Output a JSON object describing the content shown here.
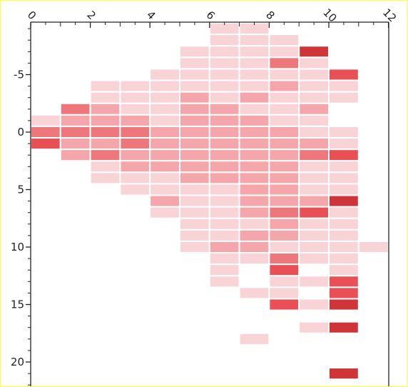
{
  "chart_data": {
    "type": "heatmap",
    "title": "",
    "xlabel": "",
    "ylabel": "",
    "x_axis_position": "top",
    "xlim": [
      0,
      12
    ],
    "ylim": [
      -10.5,
      22
    ],
    "x_ticks": [
      0,
      2,
      4,
      6,
      8,
      10,
      12
    ],
    "x_tick_labels": [
      "0",
      "2",
      "4",
      "6",
      "8",
      "10",
      "12"
    ],
    "y_ticks": [
      -5,
      0,
      5,
      10,
      15,
      20
    ],
    "y_tick_labels": [
      "-5",
      "0",
      "5",
      "10",
      "15",
      "20"
    ],
    "grid": false,
    "legend": "none",
    "colors": {
      "level1": "#f8d4d6",
      "level2": "#f4a6aa",
      "level3": "#ee777c",
      "level4": "#e85056",
      "level5": "#cf3538"
    },
    "cell_width": 1,
    "cell_height": 1,
    "cells": [
      {
        "x": 6,
        "y": -9,
        "v": 1
      },
      {
        "x": 7,
        "y": -9,
        "v": 1
      },
      {
        "x": 6,
        "y": -8,
        "v": 1
      },
      {
        "x": 7,
        "y": -8,
        "v": 1
      },
      {
        "x": 8,
        "y": -8,
        "v": 1
      },
      {
        "x": 5,
        "y": -7,
        "v": 1
      },
      {
        "x": 6,
        "y": -7,
        "v": 1
      },
      {
        "x": 7,
        "y": -7,
        "v": 1
      },
      {
        "x": 8,
        "y": -7,
        "v": 1
      },
      {
        "x": 9,
        "y": -7,
        "v": 5
      },
      {
        "x": 5,
        "y": -6,
        "v": 1
      },
      {
        "x": 6,
        "y": -6,
        "v": 1
      },
      {
        "x": 7,
        "y": -6,
        "v": 1
      },
      {
        "x": 8,
        "y": -6,
        "v": 3
      },
      {
        "x": 9,
        "y": -6,
        "v": 1
      },
      {
        "x": 4,
        "y": -5,
        "v": 1
      },
      {
        "x": 5,
        "y": -5,
        "v": 1
      },
      {
        "x": 6,
        "y": -5,
        "v": 1
      },
      {
        "x": 7,
        "y": -5,
        "v": 1
      },
      {
        "x": 8,
        "y": -5,
        "v": 1
      },
      {
        "x": 9,
        "y": -5,
        "v": 1
      },
      {
        "x": 10,
        "y": -5,
        "v": 4
      },
      {
        "x": 2,
        "y": -4,
        "v": 1
      },
      {
        "x": 3,
        "y": -4,
        "v": 1
      },
      {
        "x": 4,
        "y": -4,
        "v": 1
      },
      {
        "x": 5,
        "y": -4,
        "v": 1
      },
      {
        "x": 6,
        "y": -4,
        "v": 1
      },
      {
        "x": 7,
        "y": -4,
        "v": 1
      },
      {
        "x": 8,
        "y": -4,
        "v": 2
      },
      {
        "x": 9,
        "y": -4,
        "v": 1
      },
      {
        "x": 10,
        "y": -4,
        "v": 1
      },
      {
        "x": 2,
        "y": -3,
        "v": 1
      },
      {
        "x": 3,
        "y": -3,
        "v": 1
      },
      {
        "x": 4,
        "y": -3,
        "v": 1
      },
      {
        "x": 5,
        "y": -3,
        "v": 2
      },
      {
        "x": 6,
        "y": -3,
        "v": 1
      },
      {
        "x": 7,
        "y": -3,
        "v": 2
      },
      {
        "x": 8,
        "y": -3,
        "v": 1
      },
      {
        "x": 9,
        "y": -3,
        "v": 1
      },
      {
        "x": 10,
        "y": -3,
        "v": 1
      },
      {
        "x": 1,
        "y": -2,
        "v": 3
      },
      {
        "x": 2,
        "y": -2,
        "v": 2
      },
      {
        "x": 3,
        "y": -2,
        "v": 1
      },
      {
        "x": 4,
        "y": -2,
        "v": 1
      },
      {
        "x": 5,
        "y": -2,
        "v": 2
      },
      {
        "x": 6,
        "y": -2,
        "v": 2
      },
      {
        "x": 7,
        "y": -2,
        "v": 1
      },
      {
        "x": 8,
        "y": -2,
        "v": 1
      },
      {
        "x": 9,
        "y": -2,
        "v": 2
      },
      {
        "x": 0,
        "y": -1,
        "v": 1
      },
      {
        "x": 1,
        "y": -1,
        "v": 2
      },
      {
        "x": 2,
        "y": -1,
        "v": 2
      },
      {
        "x": 3,
        "y": -1,
        "v": 2
      },
      {
        "x": 4,
        "y": -1,
        "v": 1
      },
      {
        "x": 5,
        "y": -1,
        "v": 2
      },
      {
        "x": 6,
        "y": -1,
        "v": 2
      },
      {
        "x": 7,
        "y": -1,
        "v": 2
      },
      {
        "x": 8,
        "y": -1,
        "v": 1
      },
      {
        "x": 9,
        "y": -1,
        "v": 1
      },
      {
        "x": 0,
        "y": 0,
        "v": 3
      },
      {
        "x": 1,
        "y": 0,
        "v": 3
      },
      {
        "x": 2,
        "y": 0,
        "v": 3
      },
      {
        "x": 3,
        "y": 0,
        "v": 3
      },
      {
        "x": 4,
        "y": 0,
        "v": 2
      },
      {
        "x": 5,
        "y": 0,
        "v": 2
      },
      {
        "x": 6,
        "y": 0,
        "v": 2
      },
      {
        "x": 7,
        "y": 0,
        "v": 2
      },
      {
        "x": 8,
        "y": 0,
        "v": 2
      },
      {
        "x": 9,
        "y": 0,
        "v": 1
      },
      {
        "x": 10,
        "y": 0,
        "v": 1
      },
      {
        "x": 0,
        "y": 1,
        "v": 4
      },
      {
        "x": 1,
        "y": 1,
        "v": 2
      },
      {
        "x": 2,
        "y": 1,
        "v": 2
      },
      {
        "x": 3,
        "y": 1,
        "v": 3
      },
      {
        "x": 4,
        "y": 1,
        "v": 2
      },
      {
        "x": 5,
        "y": 1,
        "v": 2
      },
      {
        "x": 6,
        "y": 1,
        "v": 2
      },
      {
        "x": 7,
        "y": 1,
        "v": 2
      },
      {
        "x": 8,
        "y": 1,
        "v": 2
      },
      {
        "x": 9,
        "y": 1,
        "v": 2
      },
      {
        "x": 10,
        "y": 1,
        "v": 1
      },
      {
        "x": 1,
        "y": 2,
        "v": 2
      },
      {
        "x": 2,
        "y": 2,
        "v": 3
      },
      {
        "x": 3,
        "y": 2,
        "v": 2
      },
      {
        "x": 4,
        "y": 2,
        "v": 2
      },
      {
        "x": 5,
        "y": 2,
        "v": 2
      },
      {
        "x": 6,
        "y": 2,
        "v": 2
      },
      {
        "x": 7,
        "y": 2,
        "v": 2
      },
      {
        "x": 8,
        "y": 2,
        "v": 2
      },
      {
        "x": 9,
        "y": 2,
        "v": 3
      },
      {
        "x": 10,
        "y": 2,
        "v": 4
      },
      {
        "x": 2,
        "y": 3,
        "v": 1
      },
      {
        "x": 3,
        "y": 3,
        "v": 2
      },
      {
        "x": 4,
        "y": 3,
        "v": 2
      },
      {
        "x": 5,
        "y": 3,
        "v": 2
      },
      {
        "x": 6,
        "y": 3,
        "v": 2
      },
      {
        "x": 7,
        "y": 3,
        "v": 2
      },
      {
        "x": 8,
        "y": 3,
        "v": 2
      },
      {
        "x": 9,
        "y": 3,
        "v": 1
      },
      {
        "x": 10,
        "y": 3,
        "v": 1
      },
      {
        "x": 2,
        "y": 4,
        "v": 1
      },
      {
        "x": 3,
        "y": 4,
        "v": 1
      },
      {
        "x": 4,
        "y": 4,
        "v": 1
      },
      {
        "x": 5,
        "y": 4,
        "v": 2
      },
      {
        "x": 6,
        "y": 4,
        "v": 2
      },
      {
        "x": 7,
        "y": 4,
        "v": 2
      },
      {
        "x": 8,
        "y": 4,
        "v": 2
      },
      {
        "x": 9,
        "y": 4,
        "v": 1
      },
      {
        "x": 10,
        "y": 4,
        "v": 1
      },
      {
        "x": 3,
        "y": 5,
        "v": 1
      },
      {
        "x": 4,
        "y": 5,
        "v": 1
      },
      {
        "x": 5,
        "y": 5,
        "v": 1
      },
      {
        "x": 6,
        "y": 5,
        "v": 1
      },
      {
        "x": 7,
        "y": 5,
        "v": 2
      },
      {
        "x": 8,
        "y": 5,
        "v": 2
      },
      {
        "x": 9,
        "y": 5,
        "v": 1
      },
      {
        "x": 10,
        "y": 5,
        "v": 1
      },
      {
        "x": 4,
        "y": 6,
        "v": 2
      },
      {
        "x": 5,
        "y": 6,
        "v": 1
      },
      {
        "x": 6,
        "y": 6,
        "v": 1
      },
      {
        "x": 7,
        "y": 6,
        "v": 2
      },
      {
        "x": 8,
        "y": 6,
        "v": 2
      },
      {
        "x": 9,
        "y": 6,
        "v": 2
      },
      {
        "x": 10,
        "y": 6,
        "v": 5
      },
      {
        "x": 4,
        "y": 7,
        "v": 1
      },
      {
        "x": 5,
        "y": 7,
        "v": 1
      },
      {
        "x": 6,
        "y": 7,
        "v": 1
      },
      {
        "x": 7,
        "y": 7,
        "v": 2
      },
      {
        "x": 8,
        "y": 7,
        "v": 3
      },
      {
        "x": 9,
        "y": 7,
        "v": 4
      },
      {
        "x": 10,
        "y": 7,
        "v": 1
      },
      {
        "x": 5,
        "y": 8,
        "v": 1
      },
      {
        "x": 6,
        "y": 8,
        "v": 1
      },
      {
        "x": 7,
        "y": 8,
        "v": 1
      },
      {
        "x": 8,
        "y": 8,
        "v": 2
      },
      {
        "x": 9,
        "y": 8,
        "v": 1
      },
      {
        "x": 10,
        "y": 8,
        "v": 1
      },
      {
        "x": 5,
        "y": 9,
        "v": 1
      },
      {
        "x": 6,
        "y": 9,
        "v": 1
      },
      {
        "x": 7,
        "y": 9,
        "v": 2
      },
      {
        "x": 8,
        "y": 9,
        "v": 2
      },
      {
        "x": 9,
        "y": 9,
        "v": 1
      },
      {
        "x": 10,
        "y": 9,
        "v": 1
      },
      {
        "x": 5,
        "y": 10,
        "v": 1
      },
      {
        "x": 6,
        "y": 10,
        "v": 2
      },
      {
        "x": 7,
        "y": 10,
        "v": 2
      },
      {
        "x": 8,
        "y": 10,
        "v": 1
      },
      {
        "x": 9,
        "y": 10,
        "v": 1
      },
      {
        "x": 10,
        "y": 10,
        "v": 1
      },
      {
        "x": 11,
        "y": 10,
        "v": 1
      },
      {
        "x": 6,
        "y": 11,
        "v": 1
      },
      {
        "x": 7,
        "y": 11,
        "v": 1
      },
      {
        "x": 8,
        "y": 11,
        "v": 3
      },
      {
        "x": 9,
        "y": 11,
        "v": 1
      },
      {
        "x": 10,
        "y": 11,
        "v": 1
      },
      {
        "x": 6,
        "y": 12,
        "v": 1
      },
      {
        "x": 8,
        "y": 12,
        "v": 4
      },
      {
        "x": 10,
        "y": 12,
        "v": 1
      },
      {
        "x": 6,
        "y": 13,
        "v": 1
      },
      {
        "x": 8,
        "y": 13,
        "v": 1
      },
      {
        "x": 9,
        "y": 13,
        "v": 1
      },
      {
        "x": 10,
        "y": 13,
        "v": 4
      },
      {
        "x": 7,
        "y": 14,
        "v": 1
      },
      {
        "x": 8,
        "y": 14,
        "v": 1
      },
      {
        "x": 10,
        "y": 14,
        "v": 4
      },
      {
        "x": 8,
        "y": 15,
        "v": 4
      },
      {
        "x": 9,
        "y": 15,
        "v": 1
      },
      {
        "x": 10,
        "y": 15,
        "v": 5
      },
      {
        "x": 9,
        "y": 17,
        "v": 1
      },
      {
        "x": 10,
        "y": 17,
        "v": 5
      },
      {
        "x": 7,
        "y": 18,
        "v": 1
      },
      {
        "x": 10,
        "y": 21,
        "v": 5
      }
    ]
  }
}
